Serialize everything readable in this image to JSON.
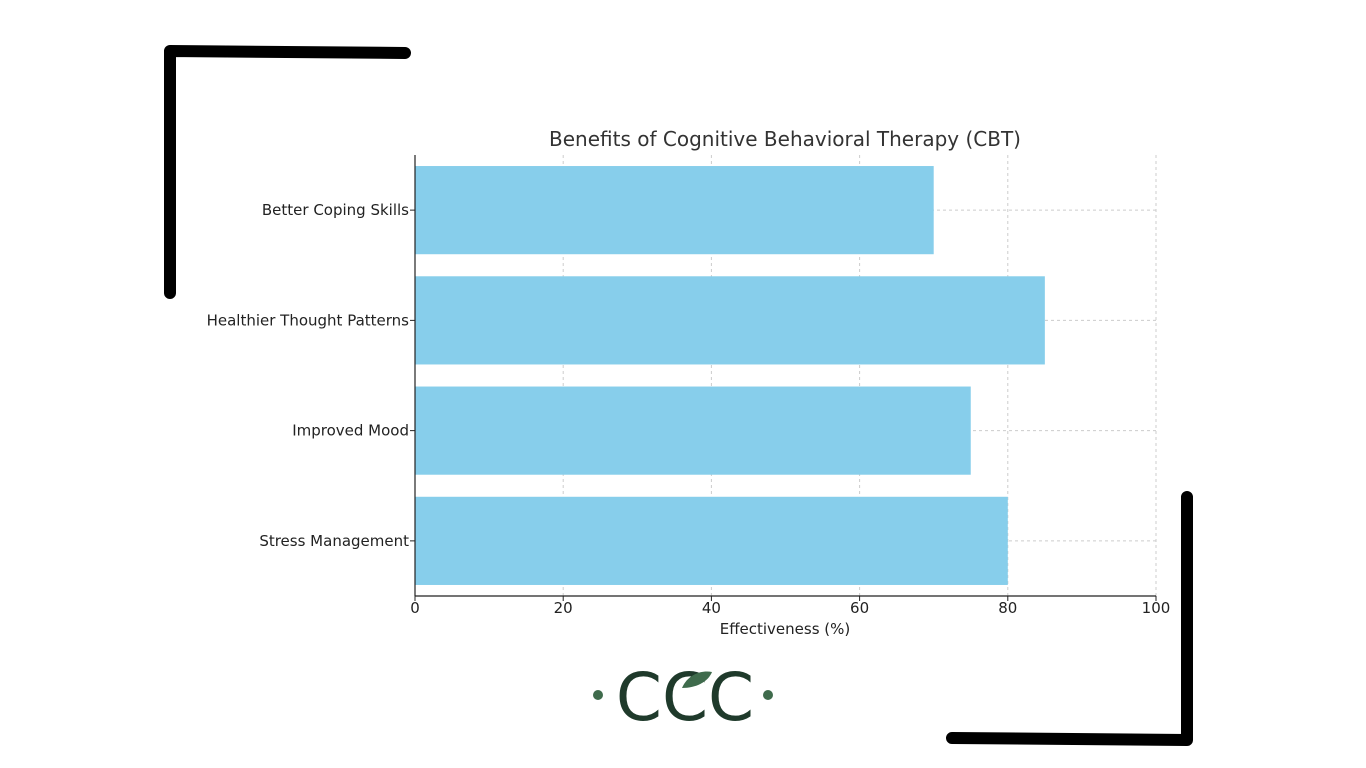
{
  "chart_data": {
    "type": "bar",
    "orientation": "horizontal",
    "title": "Benefits of Cognitive Behavioral Therapy (CBT)",
    "xlabel": "Effectiveness (%)",
    "ylabel": "",
    "categories": [
      "Stress Management",
      "Improved Mood",
      "Healthier Thought Patterns",
      "Better Coping Skills"
    ],
    "values": [
      80,
      75,
      85,
      70
    ],
    "xlim": [
      0,
      100
    ],
    "xticks": [
      0,
      20,
      40,
      60,
      80,
      100
    ],
    "grid": true,
    "bar_color": "#87ceeb"
  },
  "logo": {
    "text": "CCC",
    "dark_color": "#1f3a2b",
    "accent_color": "#3f6b4c"
  },
  "decoration": {
    "bracket_color": "#000000"
  }
}
